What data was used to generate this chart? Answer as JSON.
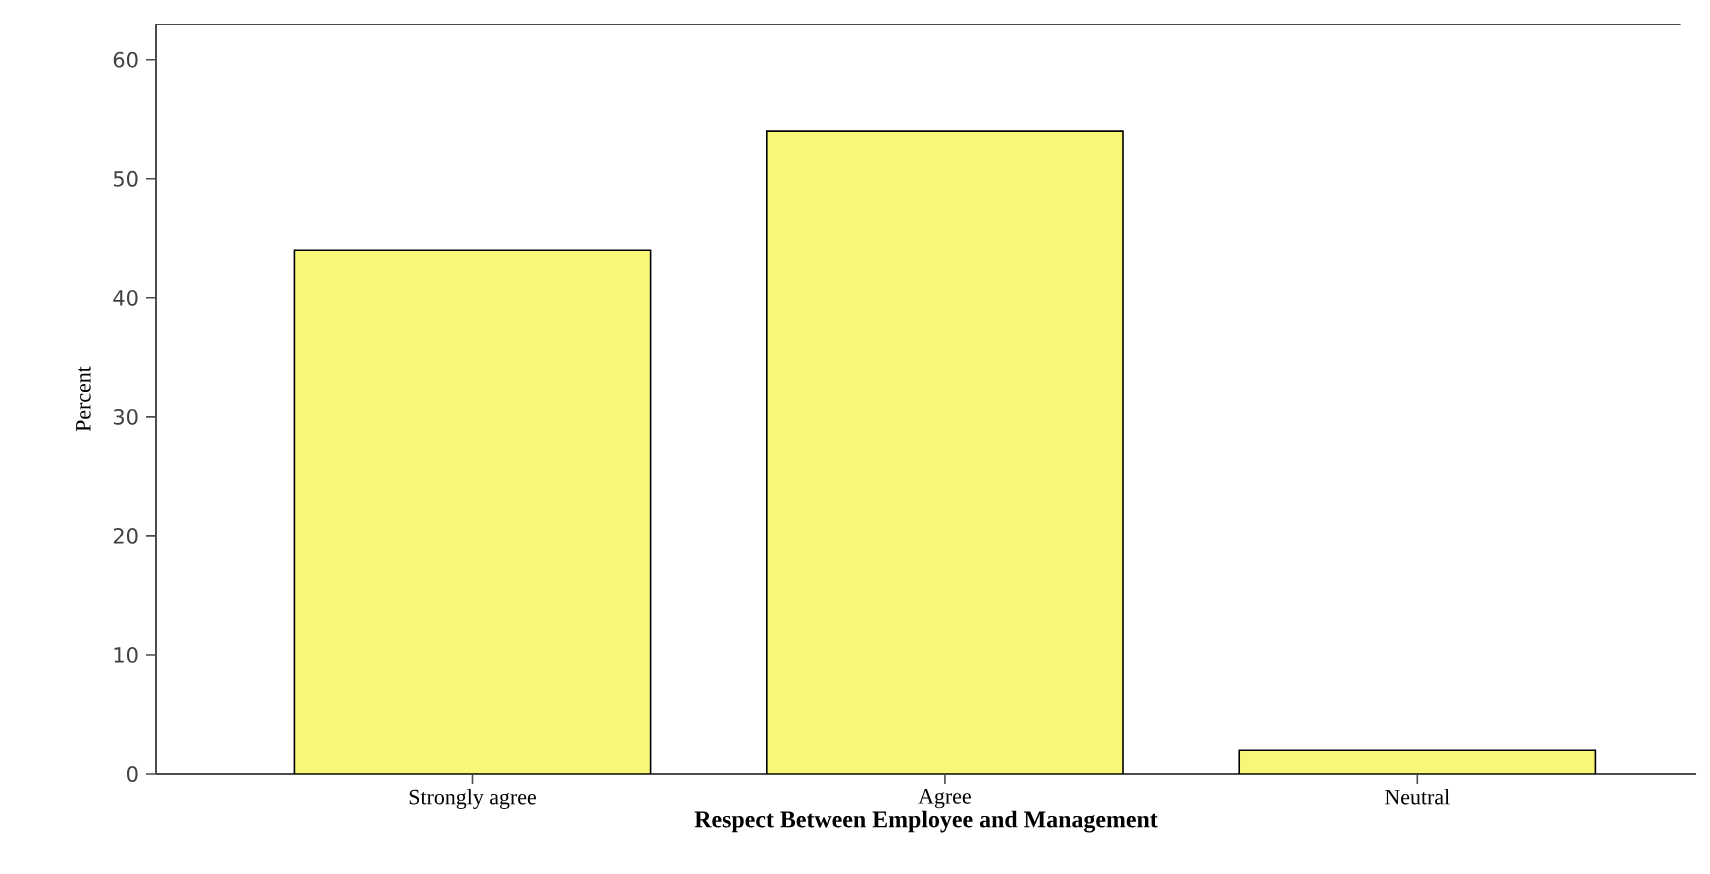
{
  "chart_data": {
    "type": "bar",
    "categories": [
      "Strongly agree",
      "Agree",
      "Neutral"
    ],
    "values": [
      44,
      54,
      2
    ],
    "color": "#f9f777",
    "xlabel": "Respect Between Employee and Management",
    "ylabel": "Percent",
    "ylim": [
      0,
      63
    ],
    "yticks": [
      0,
      10,
      20,
      30,
      40,
      50,
      60
    ]
  }
}
